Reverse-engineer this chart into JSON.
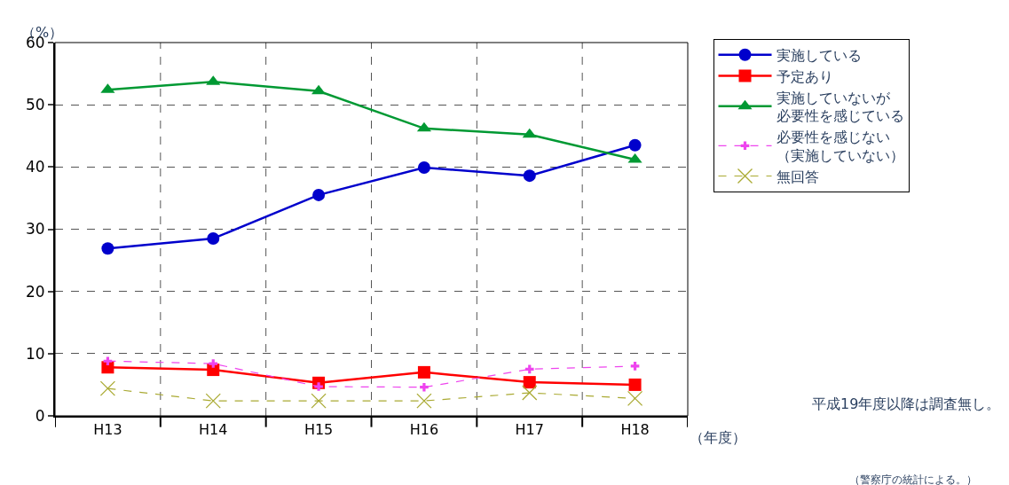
{
  "chart_data": {
    "type": "line",
    "xlabel": "（年度）",
    "ylabel": "（%）",
    "categories": [
      "H13",
      "H14",
      "H15",
      "H16",
      "H17",
      "H18"
    ],
    "ylim": [
      0,
      60
    ],
    "yticks": [
      0,
      10,
      20,
      30,
      40,
      50,
      60
    ],
    "grid": true,
    "legend": "right",
    "series": [
      {
        "name": "実施している",
        "color": "#0000cc",
        "marker": "circle",
        "line_style": "solid",
        "values": [
          26.9,
          28.5,
          35.5,
          39.9,
          38.6,
          43.5
        ]
      },
      {
        "name": "予定あり",
        "color": "#ff0000",
        "marker": "square",
        "line_style": "solid",
        "values": [
          7.8,
          7.4,
          5.3,
          7.0,
          5.4,
          5.0
        ]
      },
      {
        "name": "実施していないが必要性を感じている",
        "color": "#009933",
        "marker": "triangle",
        "line_style": "solid",
        "values": [
          52.4,
          53.7,
          52.2,
          46.2,
          45.2,
          41.2
        ]
      },
      {
        "name": "必要性を感じない（実施していない）",
        "color": "#ee44ee",
        "marker": "cross",
        "line_style": "dashed",
        "values": [
          8.8,
          8.4,
          4.7,
          4.6,
          7.5,
          8.0
        ]
      },
      {
        "name": "無回答",
        "color": "#aaaa33",
        "marker": "x",
        "line_style": "dashed",
        "values": [
          4.4,
          2.4,
          2.4,
          2.4,
          3.7,
          2.8
        ]
      }
    ],
    "annotations": [
      "平成19年度以降は調査無し。",
      "（警察庁の統計による。）"
    ]
  }
}
